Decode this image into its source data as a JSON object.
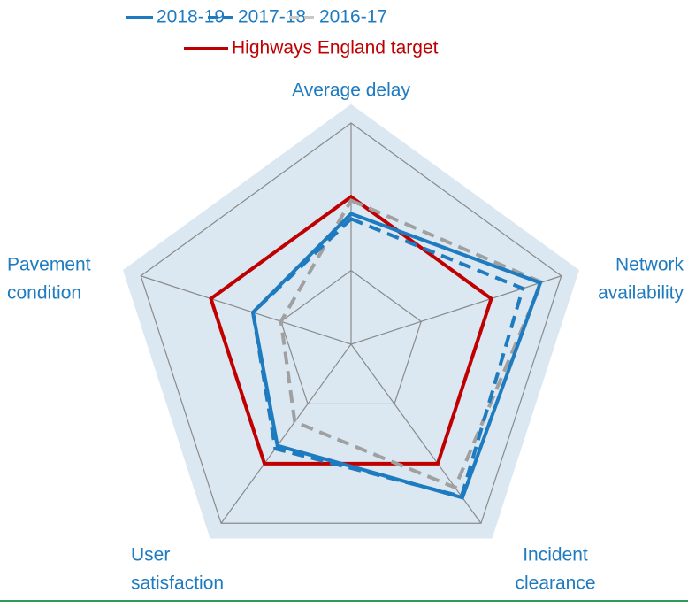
{
  "chart_data": {
    "type": "radar",
    "categories": [
      [
        "Average delay"
      ],
      [
        "Network",
        "availability"
      ],
      [
        "Incident",
        "clearance"
      ],
      [
        "User",
        "satisfaction"
      ],
      [
        "Pavement",
        "condition"
      ]
    ],
    "rlim": [
      0,
      3
    ],
    "rticks": [
      1,
      2,
      3
    ],
    "grid": true,
    "legend": "top",
    "series": [
      {
        "name": "2018-19",
        "color": "#1f7bbf",
        "dash": "solid",
        "values": [
          1.77,
          2.7,
          2.57,
          1.7,
          1.4
        ]
      },
      {
        "name": "2017-18",
        "color": "#1f7bbf",
        "dash": "dashed",
        "values": [
          1.7,
          2.45,
          2.55,
          1.75,
          1.4
        ]
      },
      {
        "name": "2016-17",
        "color": "#a0a0a0",
        "dash": "dashed",
        "values": [
          1.95,
          2.72,
          2.4,
          1.3,
          1.0
        ]
      },
      {
        "name": "Highways England target",
        "color": "#c00000",
        "dash": "solid",
        "values": [
          2.0,
          2.0,
          2.0,
          2.0,
          2.0
        ]
      }
    ]
  }
}
